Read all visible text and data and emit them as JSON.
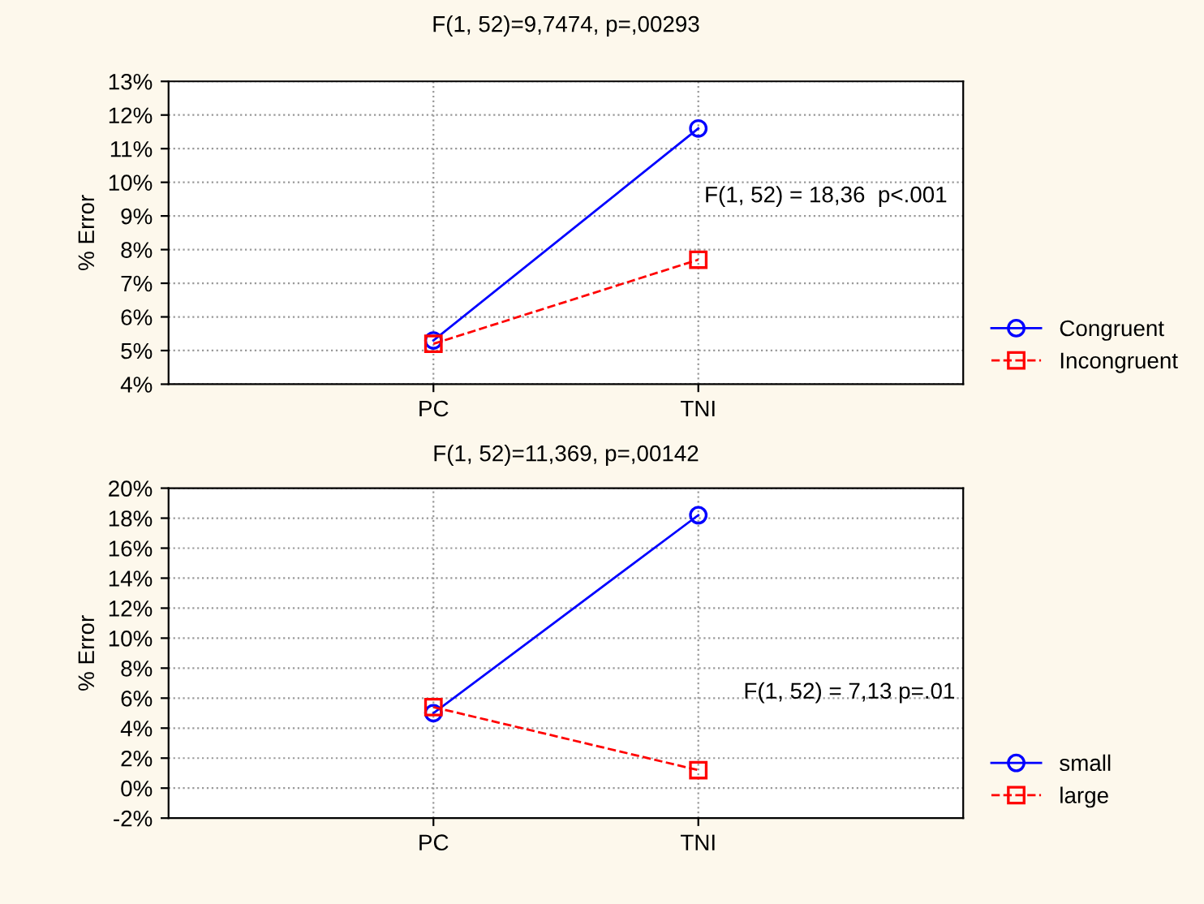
{
  "chart_data": [
    {
      "type": "line",
      "title": "F(1, 52)=9,7474, p=,00293",
      "ylabel": "% Error",
      "categories": [
        "PC",
        "TNI"
      ],
      "series": [
        {
          "name": "Congruent",
          "color": "#0000ff",
          "values": [
            5.3,
            11.6
          ],
          "marker": "circle",
          "line_style": "solid"
        },
        {
          "name": "Incongruent",
          "color": "#ff0000",
          "values": [
            5.2,
            7.7
          ],
          "marker": "square",
          "line_style": "dashed"
        }
      ],
      "ylim": [
        4,
        13
      ],
      "yticks": [
        {
          "value": 4,
          "label": "4%"
        },
        {
          "value": 5,
          "label": "5%"
        },
        {
          "value": 6,
          "label": "6%"
        },
        {
          "value": 7,
          "label": "7%"
        },
        {
          "value": 8,
          "label": "8%"
        },
        {
          "value": 9,
          "label": "9%"
        },
        {
          "value": 10,
          "label": "10%"
        },
        {
          "value": 11,
          "label": "11%"
        },
        {
          "value": 12,
          "label": "12%"
        },
        {
          "value": 13,
          "label": "13%"
        }
      ],
      "annotations": [
        "F(1, 52) = 18,36  p<.001"
      ],
      "grid": true,
      "legend": "bottom right"
    },
    {
      "type": "line",
      "title": "F(1, 52)=11,369, p=,00142",
      "ylabel": "% Error",
      "categories": [
        "PC",
        "TNI"
      ],
      "series": [
        {
          "name": "small",
          "color": "#0000ff",
          "values": [
            5.0,
            18.2
          ],
          "marker": "circle",
          "line_style": "solid"
        },
        {
          "name": "large",
          "color": "#ff0000",
          "values": [
            5.4,
            1.2
          ],
          "marker": "square",
          "line_style": "dashed"
        }
      ],
      "ylim": [
        -2,
        20
      ],
      "yticks": [
        {
          "value": -2,
          "label": "-2%"
        },
        {
          "value": 0,
          "label": "0%"
        },
        {
          "value": 2,
          "label": "2%"
        },
        {
          "value": 4,
          "label": "4%"
        },
        {
          "value": 6,
          "label": "6%"
        },
        {
          "value": 8,
          "label": "8%"
        },
        {
          "value": 10,
          "label": "10%"
        },
        {
          "value": 12,
          "label": "12%"
        },
        {
          "value": 14,
          "label": "14%"
        },
        {
          "value": 16,
          "label": "16%"
        },
        {
          "value": 18,
          "label": "18%"
        },
        {
          "value": 20,
          "label": "20%"
        }
      ],
      "annotations": [
        "F(1, 52) = 7,13 p=.01"
      ],
      "grid": true,
      "legend": "bottom right"
    }
  ]
}
